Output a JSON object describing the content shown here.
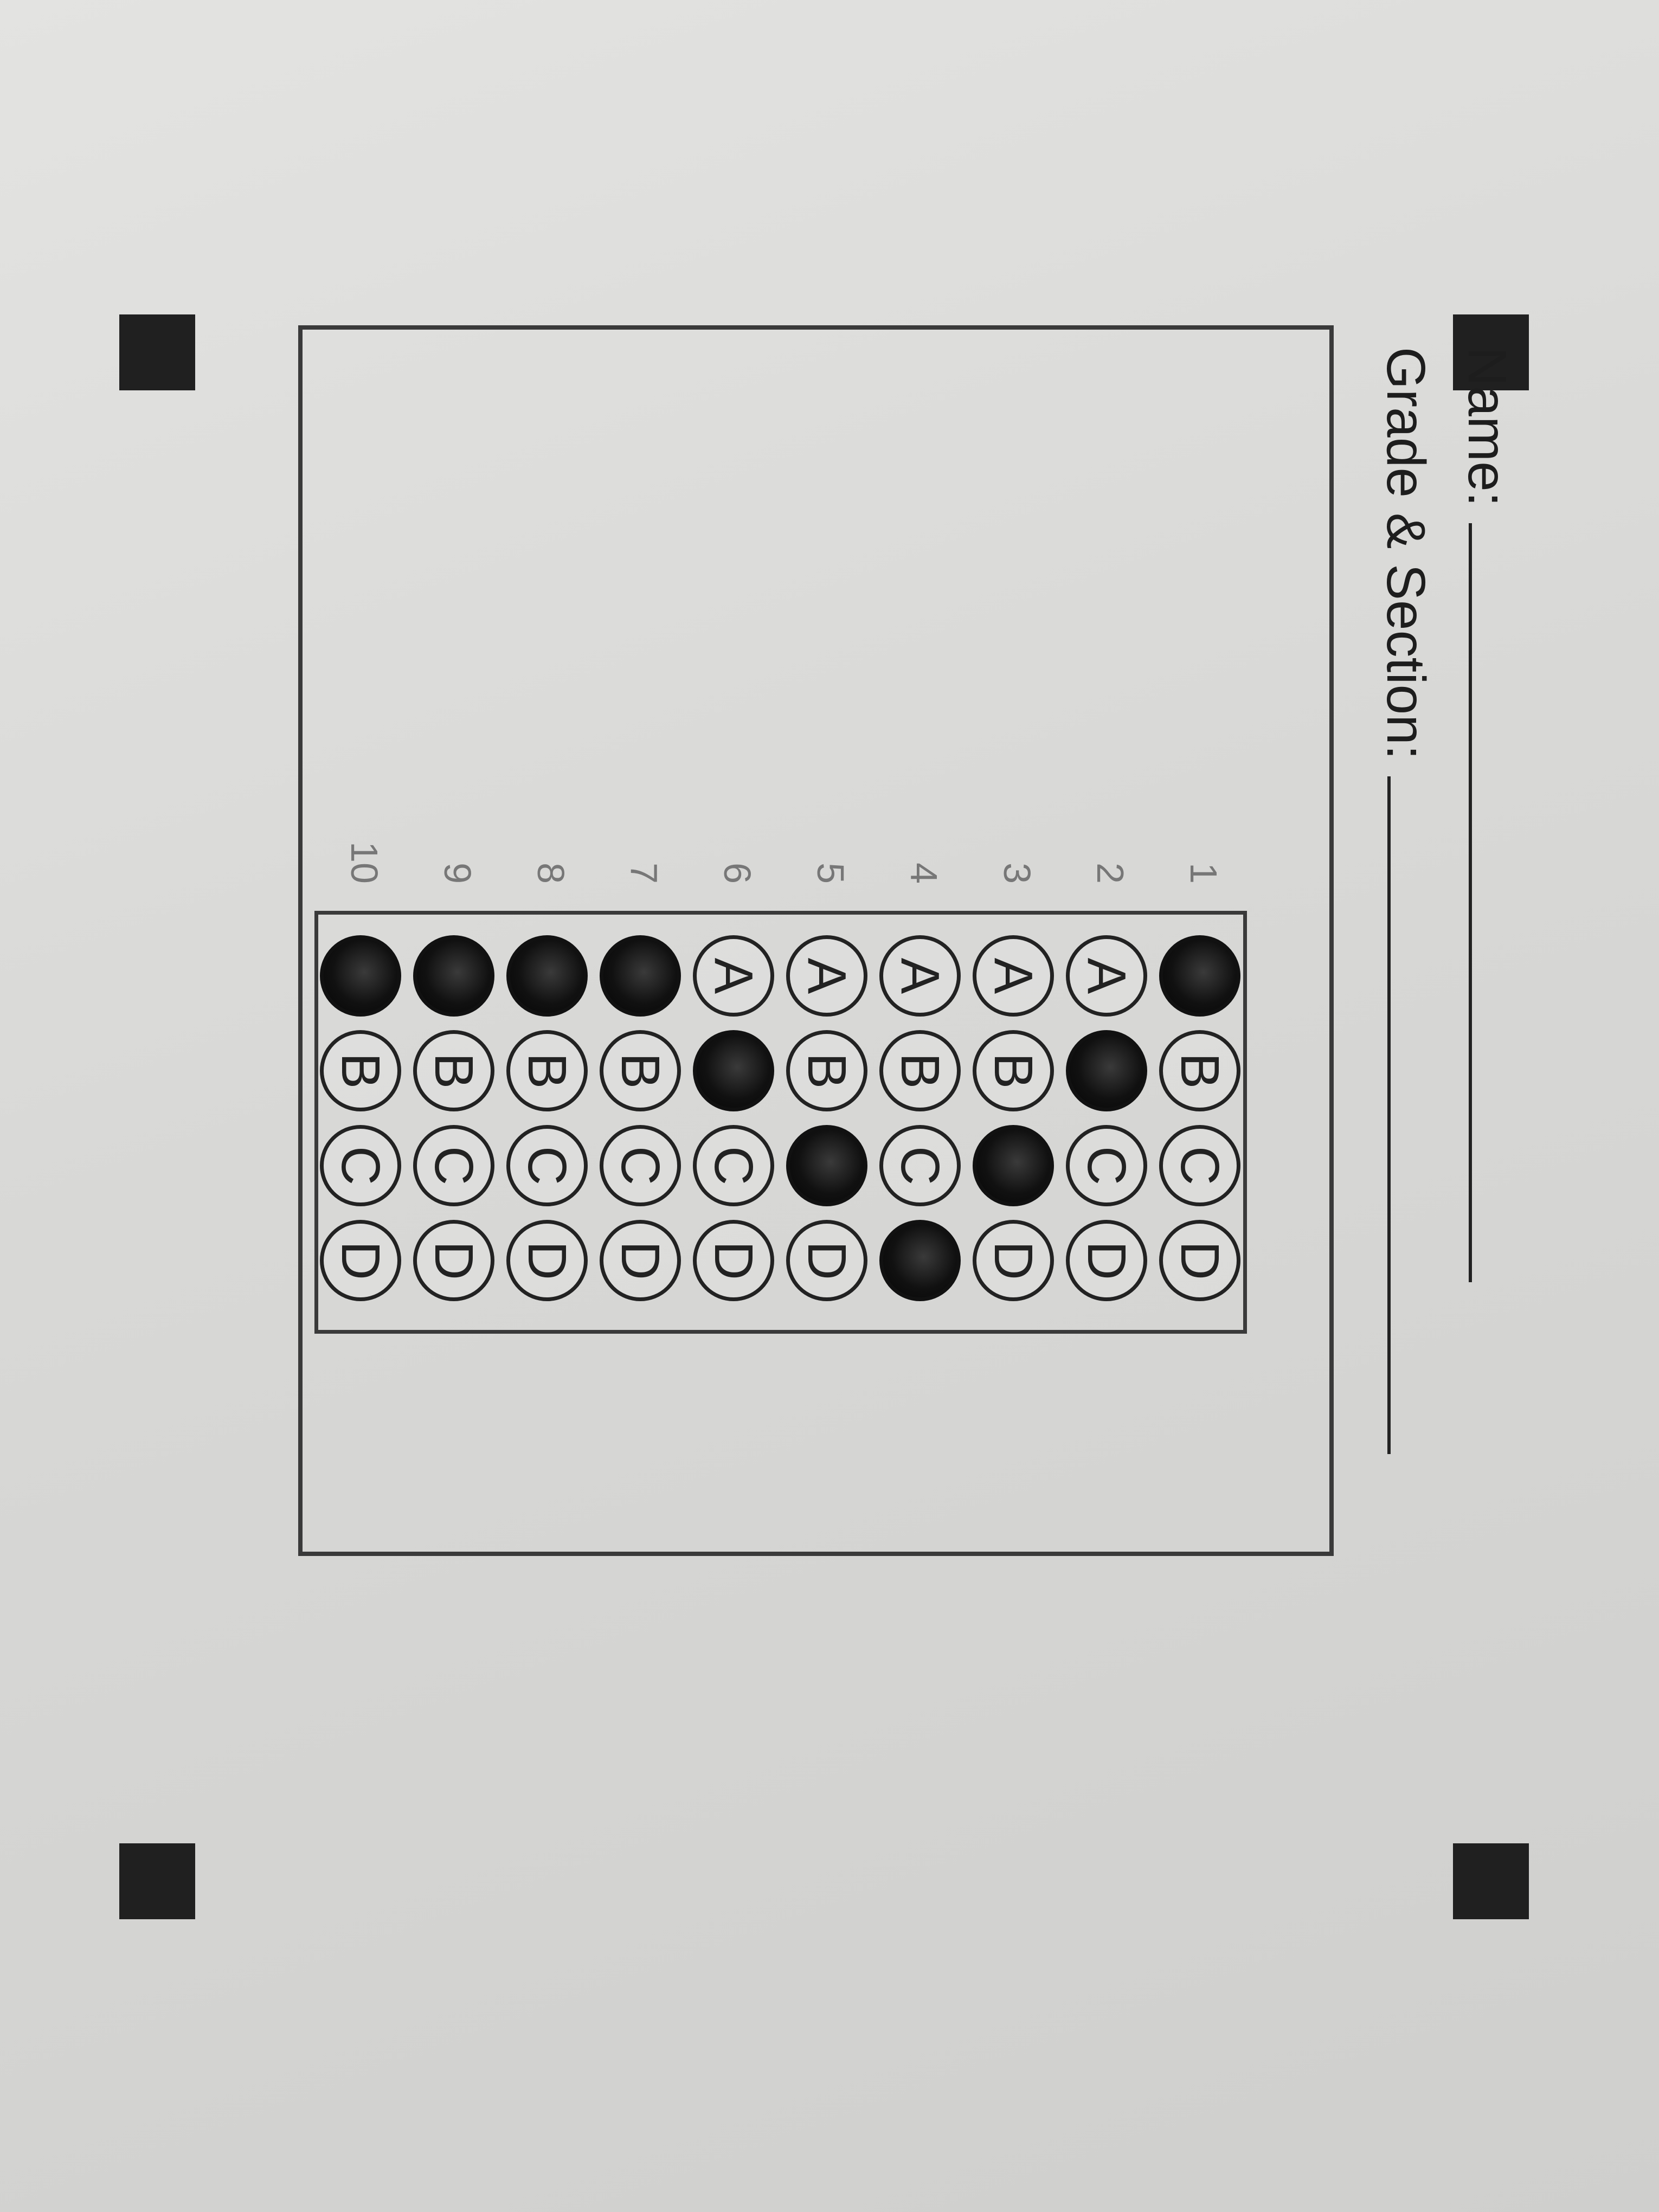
{
  "form": {
    "name_label": "Name:",
    "grade_section_label": "Grade & Section:"
  },
  "answer_sheet": {
    "choices": [
      "A",
      "B",
      "C",
      "D"
    ],
    "questions": [
      {
        "number": "1",
        "marked": "A"
      },
      {
        "number": "2",
        "marked": "B"
      },
      {
        "number": "3",
        "marked": "C"
      },
      {
        "number": "4",
        "marked": "D"
      },
      {
        "number": "5",
        "marked": "C"
      },
      {
        "number": "6",
        "marked": "B"
      },
      {
        "number": "7",
        "marked": "A"
      },
      {
        "number": "8",
        "marked": "A"
      },
      {
        "number": "9",
        "marked": "A"
      },
      {
        "number": "10",
        "marked": "A"
      }
    ]
  },
  "colors": {
    "ink": "#111111",
    "paper": "#e0e0de"
  }
}
